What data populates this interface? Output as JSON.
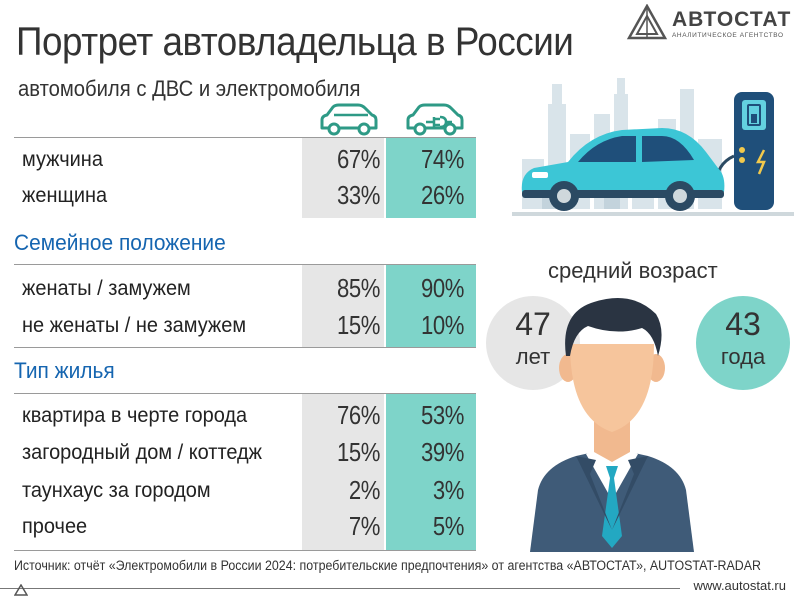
{
  "header": {
    "title": "Портрет автовладельца в России",
    "subtitle": "автомобиля с ДВС и электромобиля"
  },
  "logo": {
    "name": "АВТОСТАТ",
    "tagline": "АНАЛИТИЧЕСКОЕ АГЕНТСТВО"
  },
  "icons": {
    "ice_car": "car-icon",
    "electric_car": "plug-car-icon"
  },
  "gender": {
    "rows": [
      {
        "label": "мужчина",
        "ice": "67%",
        "ev": "74%"
      },
      {
        "label": "женщина",
        "ice": "33%",
        "ev": "26%"
      }
    ]
  },
  "family": {
    "title": "Семейное положение",
    "rows": [
      {
        "label": "женаты / замужем",
        "ice": "85%",
        "ev": "90%"
      },
      {
        "label": "не женаты / не замужем",
        "ice": "15%",
        "ev": "10%"
      }
    ]
  },
  "housing": {
    "title": "Тип жилья",
    "rows": [
      {
        "label": "квартира в черте города",
        "ice": "76%",
        "ev": "53%"
      },
      {
        "label": "загородный дом / коттедж",
        "ice": "15%",
        "ev": "39%"
      },
      {
        "label": "таунхаус за городом",
        "ice": "2%",
        "ev": "3%"
      },
      {
        "label": "прочее",
        "ice": "7%",
        "ev": "5%"
      }
    ]
  },
  "age": {
    "title": "средний возраст",
    "ice_value": "47",
    "ice_unit": "лет",
    "ev_value": "43",
    "ev_unit": "года"
  },
  "footer": {
    "source": "Источник: отчёт «Электромобили в России 2024: потребительские предпочтения» от агентства «АВТОСТАТ», AUTOSTAT-RADAR",
    "site": "www.autostat.ru"
  },
  "colors": {
    "teal": "#7ed4c9",
    "grey": "#e6e6e6",
    "section_blue": "#1565b0",
    "icon_green": "#2e9a86"
  }
}
